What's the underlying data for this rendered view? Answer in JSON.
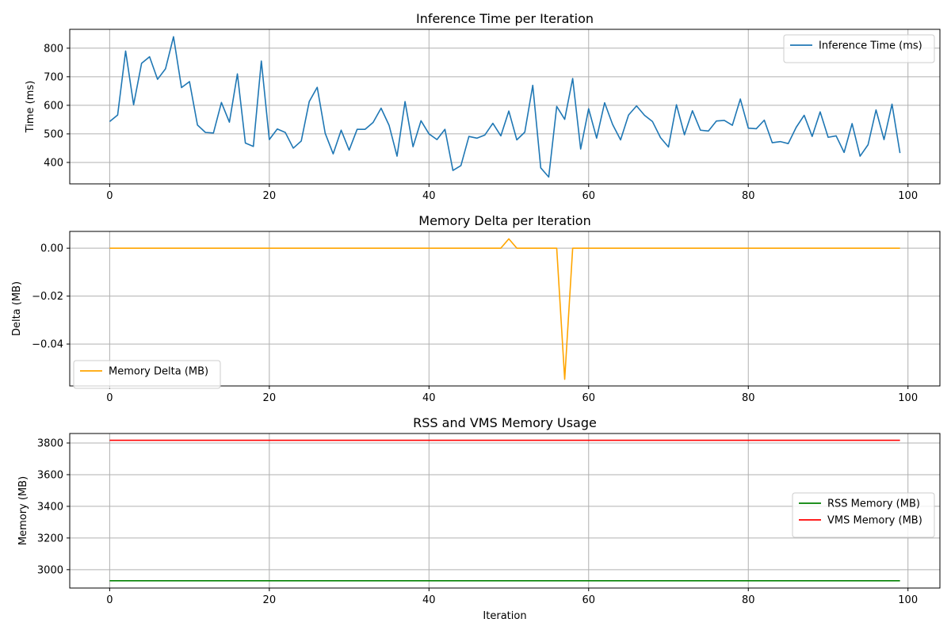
{
  "chart_data": [
    {
      "type": "line",
      "title": "Inference Time per Iteration",
      "xlabel": "",
      "ylabel": "Time (ms)",
      "xlim": [
        -5,
        104
      ],
      "ylim": [
        325,
        866
      ],
      "xticks": [
        0,
        20,
        40,
        60,
        80,
        100
      ],
      "yticks": [
        400,
        500,
        600,
        700,
        800
      ],
      "ytick_labels": [
        "400",
        "500",
        "600",
        "700",
        "800"
      ],
      "grid": true,
      "legend_position": "upper right",
      "series": [
        {
          "name": "Inference Time (ms)",
          "color": "#1f77b4",
          "values": [
            543,
            566,
            790,
            602,
            747,
            770,
            691,
            728,
            840,
            662,
            683,
            531,
            505,
            503,
            610,
            541,
            710,
            468,
            456,
            755,
            480,
            517,
            505,
            450,
            475,
            613,
            663,
            502,
            430,
            513,
            443,
            516,
            516,
            540,
            590,
            530,
            422,
            613,
            455,
            546,
            500,
            480,
            516,
            372,
            389,
            491,
            485,
            496,
            537,
            493,
            580,
            479,
            506,
            670,
            381,
            349,
            596,
            551,
            694,
            447,
            588,
            485,
            609,
            533,
            479,
            566,
            598,
            565,
            543,
            487,
            454,
            602,
            497,
            581,
            513,
            510,
            545,
            547,
            530,
            622,
            520,
            518,
            548,
            469,
            473,
            466,
            523,
            565,
            491,
            577,
            488,
            493,
            435,
            536,
            422,
            462,
            584,
            480,
            604,
            433
          ]
        }
      ]
    },
    {
      "type": "line",
      "title": "Memory Delta per Iteration",
      "xlabel": "",
      "ylabel": "Delta (MB)",
      "xlim": [
        -5,
        104
      ],
      "ylim": [
        -0.0575,
        0.007
      ],
      "xticks": [
        0,
        20,
        40,
        60,
        80,
        100
      ],
      "yticks": [
        -0.04,
        -0.02,
        0.0
      ],
      "ytick_labels": [
        "−0.04",
        "−0.02",
        "0.00"
      ],
      "grid": true,
      "legend_position": "lower left",
      "series": [
        {
          "name": "Memory Delta (MB)",
          "color": "#ffa500",
          "values": [
            0,
            0,
            0,
            0,
            0,
            0,
            0,
            0,
            0,
            0,
            0,
            0,
            0,
            0,
            0,
            0,
            0,
            0,
            0,
            0,
            0,
            0,
            0,
            0,
            0,
            0,
            0,
            0,
            0,
            0,
            0,
            0,
            0,
            0,
            0,
            0,
            0,
            0,
            0,
            0,
            0,
            0,
            0,
            0,
            0,
            0,
            0,
            0,
            0,
            0,
            0.0039,
            0,
            0,
            0,
            0,
            0,
            0,
            -0.0547,
            0,
            0,
            0,
            0,
            0,
            0,
            0,
            0,
            0,
            0,
            0,
            0,
            0,
            0,
            0,
            0,
            0,
            0,
            0,
            0,
            0,
            0,
            0,
            0,
            0,
            0,
            0,
            0,
            0,
            0,
            0,
            0,
            0,
            0,
            0,
            0,
            0,
            0,
            0,
            0,
            0,
            0
          ]
        }
      ]
    },
    {
      "type": "line",
      "title": "RSS and VMS Memory Usage",
      "xlabel": "Iteration",
      "ylabel": "Memory (MB)",
      "xlim": [
        -5,
        104
      ],
      "ylim": [
        2884,
        3860
      ],
      "xticks": [
        0,
        20,
        40,
        60,
        80,
        100
      ],
      "yticks": [
        3000,
        3200,
        3400,
        3600,
        3800
      ],
      "ytick_labels": [
        "3000",
        "3200",
        "3400",
        "3600",
        "3800"
      ],
      "grid": true,
      "legend_position": "center right",
      "series": [
        {
          "name": "RSS Memory (MB)",
          "color": "#008000",
          "constant": 2930,
          "count": 100
        },
        {
          "name": "VMS Memory (MB)",
          "color": "#ff0000",
          "constant": 3817,
          "count": 100
        }
      ]
    }
  ]
}
